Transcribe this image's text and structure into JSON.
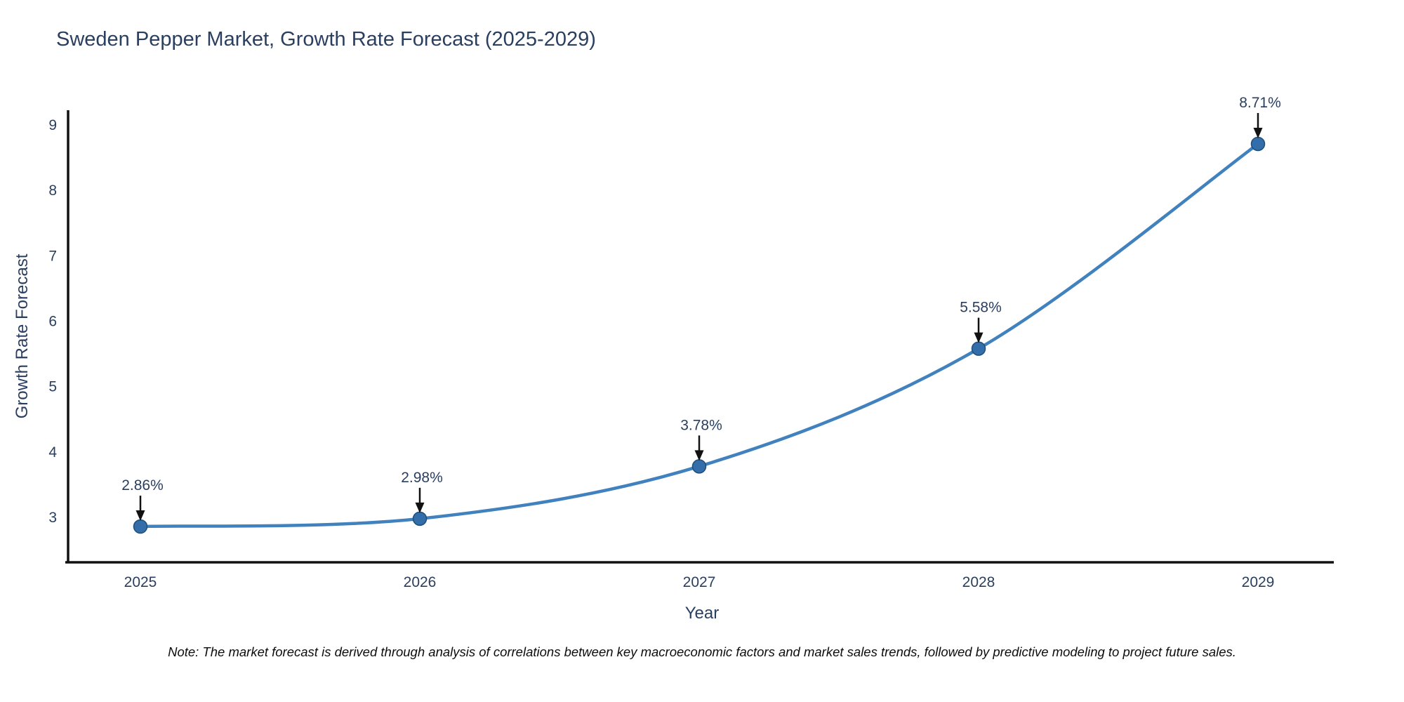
{
  "title": "Sweden Pepper Market, Growth Rate Forecast (2025-2029)",
  "note": "Note: The market forecast is derived through analysis of correlations between key macroeconomic factors and market sales trends, followed by predictive modeling to project future sales.",
  "chart_data": {
    "type": "line",
    "title": "Sweden Pepper Market, Growth Rate Forecast (2025-2029)",
    "categories": [
      "2025",
      "2026",
      "2027",
      "2028",
      "2029"
    ],
    "values": [
      2.86,
      2.98,
      3.78,
      5.58,
      8.71
    ],
    "point_labels": [
      "2.86%",
      "2.98%",
      "3.78%",
      "5.58%",
      "8.71%"
    ],
    "xlabel": "Year",
    "ylabel": "Growth Rate Forecast",
    "yticks": [
      3,
      4,
      5,
      6,
      7,
      8,
      9
    ],
    "ylim": [
      2.31,
      9.2
    ],
    "grid": false,
    "legend": false,
    "line_shape": "spline",
    "colors": {
      "line": "#4182be",
      "marker_fill": "#346eaa",
      "marker_edge": "#1f4e79",
      "axis_line": "#111111",
      "arrow": "#111111",
      "text": "#2a3f5f"
    }
  }
}
